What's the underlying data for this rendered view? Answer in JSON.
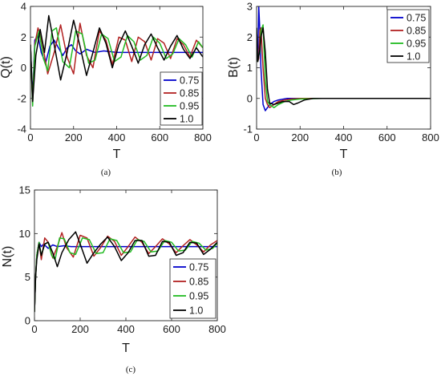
{
  "chart_data": [
    {
      "type": "line",
      "panel_caption": "(a)",
      "xlabel": "T",
      "ylabel": "Q(t)",
      "xlim": [
        0,
        800
      ],
      "ylim": [
        -4,
        4
      ],
      "xticks": [
        0,
        200,
        400,
        600,
        800
      ],
      "yticks": [
        -4,
        -2,
        0,
        2,
        4
      ],
      "legend_position": "bottom-right",
      "series": [
        {
          "name": "0.75",
          "color": "#0000cc",
          "x": [
            0,
            10,
            20,
            35,
            50,
            70,
            90,
            110,
            130,
            150,
            170,
            190,
            210,
            230,
            260,
            300,
            340,
            400,
            500,
            600,
            700,
            800
          ],
          "y": [
            1.5,
            -2.0,
            1.8,
            2.1,
            1.0,
            0.3,
            1.4,
            1.8,
            1.3,
            0.8,
            1.3,
            1.5,
            1.1,
            0.9,
            1.2,
            1.0,
            1.1,
            1.0,
            1.0,
            1.0,
            1.0,
            1.0
          ]
        },
        {
          "name": "0.85",
          "color": "#b22222",
          "x": [
            0,
            10,
            20,
            35,
            55,
            80,
            110,
            140,
            170,
            200,
            230,
            260,
            290,
            320,
            350,
            380,
            410,
            440,
            470,
            500,
            530,
            560,
            590,
            620,
            650,
            680,
            710,
            740,
            770,
            800
          ],
          "y": [
            1.5,
            -2.3,
            1.5,
            2.6,
            1.6,
            -0.4,
            1.0,
            2.8,
            0.7,
            -0.4,
            2.9,
            0.8,
            0.0,
            2.4,
            1.8,
            0.2,
            2.0,
            1.8,
            0.4,
            2.0,
            1.7,
            0.5,
            1.9,
            1.6,
            0.6,
            1.9,
            1.5,
            0.7,
            1.8,
            1.3
          ]
        },
        {
          "name": "0.95",
          "color": "#22bb22",
          "x": [
            0,
            10,
            20,
            40,
            60,
            80,
            100,
            120,
            150,
            180,
            210,
            240,
            270,
            300,
            330,
            360,
            390,
            420,
            450,
            480,
            510,
            540,
            570,
            600,
            630,
            660,
            690,
            720,
            750,
            780,
            800
          ],
          "y": [
            1.5,
            -2.5,
            1.4,
            2.4,
            0.6,
            -0.2,
            2.4,
            2.6,
            0.4,
            0.0,
            2.4,
            2.2,
            0.3,
            0.5,
            2.2,
            1.9,
            0.4,
            0.7,
            2.1,
            1.7,
            0.5,
            0.8,
            2.0,
            1.6,
            0.6,
            0.9,
            1.9,
            1.5,
            0.7,
            1.7,
            1.3
          ]
        },
        {
          "name": "1.0",
          "color": "#000000",
          "x": [
            0,
            10,
            25,
            45,
            65,
            85,
            110,
            140,
            170,
            200,
            230,
            260,
            290,
            320,
            350,
            380,
            410,
            440,
            470,
            500,
            530,
            560,
            590,
            620,
            650,
            680,
            710,
            740,
            770,
            800
          ],
          "y": [
            1.5,
            -2.2,
            0.8,
            2.5,
            1.0,
            3.4,
            1.5,
            -0.8,
            1.0,
            3.1,
            1.4,
            -0.5,
            1.0,
            2.6,
            1.6,
            0.0,
            1.5,
            2.4,
            1.4,
            0.3,
            1.5,
            2.2,
            1.3,
            0.5,
            1.4,
            2.1,
            1.2,
            0.6,
            1.3,
            0.7
          ]
        }
      ]
    },
    {
      "type": "line",
      "panel_caption": "(b)",
      "xlabel": "T",
      "ylabel": "B(t)",
      "xlim": [
        0,
        800
      ],
      "ylim": [
        -1,
        3
      ],
      "xticks": [
        0,
        200,
        400,
        600,
        800
      ],
      "yticks": [
        -1,
        0,
        1,
        2,
        3
      ],
      "legend_position": "top-right",
      "series": [
        {
          "name": "0.75",
          "color": "#0000cc",
          "x": [
            0,
            5,
            10,
            15,
            20,
            30,
            40,
            50,
            60,
            80,
            100,
            140,
            200,
            300,
            800
          ],
          "y": [
            2.3,
            1.2,
            3.0,
            2.2,
            1.0,
            -0.2,
            -0.4,
            -0.3,
            -0.2,
            -0.1,
            -0.05,
            0.0,
            0.0,
            0.0,
            0.0
          ]
        },
        {
          "name": "0.85",
          "color": "#b22222",
          "x": [
            0,
            5,
            10,
            15,
            20,
            30,
            40,
            50,
            60,
            80,
            100,
            130,
            160,
            200,
            300,
            800
          ],
          "y": [
            2.3,
            1.2,
            1.3,
            2.2,
            2.3,
            1.0,
            0.0,
            -0.2,
            -0.3,
            -0.2,
            -0.1,
            -0.05,
            -0.02,
            0.0,
            0.0,
            0.0
          ]
        },
        {
          "name": "0.95",
          "color": "#22bb22",
          "x": [
            0,
            5,
            10,
            15,
            20,
            30,
            40,
            50,
            60,
            80,
            100,
            130,
            160,
            200,
            300,
            800
          ],
          "y": [
            2.3,
            1.2,
            1.4,
            1.5,
            2.2,
            2.4,
            0.6,
            -0.1,
            -0.2,
            -0.3,
            -0.2,
            -0.1,
            -0.05,
            -0.02,
            0.0,
            0.0
          ]
        },
        {
          "name": "1.0",
          "color": "#000000",
          "x": [
            0,
            5,
            10,
            15,
            20,
            30,
            40,
            50,
            60,
            80,
            100,
            120,
            150,
            170,
            190,
            220,
            260,
            300,
            800
          ],
          "y": [
            2.3,
            1.2,
            1.4,
            1.6,
            2.0,
            2.3,
            1.5,
            0.3,
            -0.15,
            -0.2,
            -0.15,
            -0.1,
            -0.1,
            -0.2,
            -0.15,
            -0.05,
            0.0,
            0.0,
            0.0
          ]
        }
      ]
    },
    {
      "type": "line",
      "panel_caption": "(c)",
      "xlabel": "T",
      "ylabel": "N(t)",
      "xlim": [
        0,
        800
      ],
      "ylim": [
        0,
        15
      ],
      "xticks": [
        0,
        200,
        400,
        600,
        800
      ],
      "yticks": [
        0,
        5,
        10,
        15
      ],
      "legend_position": "bottom-right",
      "series": [
        {
          "name": "0.75",
          "color": "#0000cc",
          "x": [
            0,
            5,
            10,
            20,
            30,
            40,
            60,
            80,
            100,
            130,
            160,
            200,
            300,
            400,
            500,
            600,
            700,
            800
          ],
          "y": [
            1.0,
            5.0,
            7.5,
            9.0,
            8.5,
            8.8,
            8.3,
            8.7,
            8.5,
            8.6,
            8.5,
            8.5,
            8.5,
            8.5,
            8.5,
            8.5,
            8.5,
            8.5
          ]
        },
        {
          "name": "0.85",
          "color": "#b22222",
          "x": [
            0,
            5,
            10,
            20,
            30,
            45,
            60,
            80,
            100,
            120,
            140,
            170,
            200,
            230,
            260,
            290,
            320,
            350,
            380,
            410,
            440,
            470,
            500,
            530,
            560,
            590,
            620,
            650,
            680,
            710,
            740,
            770,
            800
          ],
          "y": [
            1.0,
            5.0,
            7.5,
            9.0,
            7.0,
            9.5,
            9.0,
            7.2,
            8.5,
            10.1,
            8.4,
            7.3,
            9.8,
            9.5,
            7.4,
            8.4,
            9.7,
            9.1,
            7.5,
            8.5,
            9.6,
            9.0,
            7.7,
            8.5,
            9.4,
            8.8,
            7.8,
            8.6,
            9.3,
            8.7,
            7.9,
            8.7,
            9.2
          ]
        },
        {
          "name": "0.95",
          "color": "#22bb22",
          "x": [
            0,
            5,
            10,
            20,
            30,
            45,
            60,
            75,
            90,
            110,
            130,
            155,
            180,
            210,
            240,
            270,
            300,
            330,
            360,
            390,
            420,
            450,
            480,
            510,
            540,
            570,
            600,
            630,
            660,
            690,
            720,
            750,
            780,
            800
          ],
          "y": [
            1.0,
            5.0,
            7.5,
            9.0,
            7.5,
            8.8,
            9.0,
            7.5,
            7.0,
            9.5,
            9.4,
            7.8,
            7.6,
            9.5,
            9.3,
            7.7,
            7.8,
            9.4,
            9.2,
            7.8,
            7.9,
            9.3,
            9.1,
            7.9,
            8.0,
            9.2,
            9.0,
            8.0,
            8.1,
            9.1,
            8.9,
            8.1,
            8.3,
            8.9
          ]
        },
        {
          "name": "1.0",
          "color": "#000000",
          "x": [
            0,
            5,
            10,
            20,
            30,
            45,
            60,
            80,
            100,
            120,
            150,
            180,
            200,
            230,
            260,
            290,
            320,
            350,
            380,
            410,
            440,
            470,
            500,
            530,
            560,
            590,
            620,
            650,
            680,
            710,
            740,
            770,
            800
          ],
          "y": [
            1.0,
            5.0,
            7.0,
            8.8,
            7.5,
            8.8,
            9.0,
            7.8,
            6.2,
            7.8,
            9.3,
            10.2,
            8.8,
            6.6,
            7.8,
            8.8,
            9.6,
            8.5,
            6.9,
            7.8,
            9.2,
            9.2,
            7.4,
            7.5,
            9.1,
            9.0,
            7.5,
            7.8,
            9.0,
            8.9,
            7.6,
            8.2,
            9.0
          ]
        }
      ]
    }
  ]
}
